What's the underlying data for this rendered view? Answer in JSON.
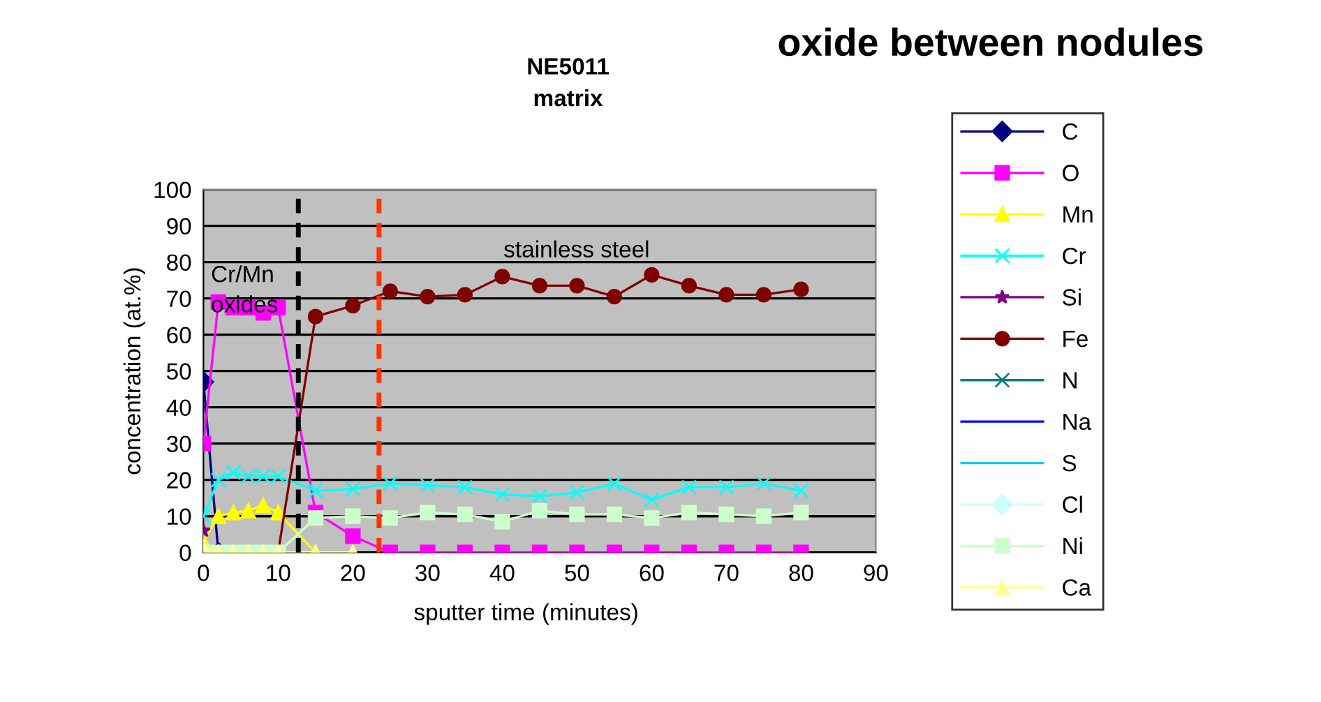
{
  "chart_data": {
    "type": "line",
    "title": "oxide between nodules",
    "subtitle": "NE5011\nmatrix",
    "xlabel": "sputter time (minutes)",
    "ylabel": "concentration (at.%)",
    "x": [
      0,
      2,
      4,
      6,
      8,
      10,
      15,
      20,
      25,
      30,
      35,
      40,
      45,
      50,
      55,
      60,
      65,
      70,
      75,
      80
    ],
    "xlim": [
      0,
      90
    ],
    "xticks": [
      0,
      10,
      20,
      30,
      40,
      50,
      60,
      70,
      80,
      90
    ],
    "ylim": [
      0,
      100
    ],
    "yticks": [
      0,
      10,
      20,
      30,
      40,
      50,
      60,
      70,
      80,
      90,
      100
    ],
    "grid": "y",
    "legend": "right",
    "series": [
      {
        "name": "C",
        "color": "#000080",
        "marker": "diamond",
        "values": [
          47,
          0,
          null,
          null,
          null,
          null,
          null,
          null,
          null,
          null,
          null,
          null,
          null,
          null,
          null,
          null,
          null,
          null,
          null,
          null
        ]
      },
      {
        "name": "O",
        "color": "#ff00ff",
        "marker": "square",
        "values": [
          30,
          69,
          67.5,
          67.5,
          66,
          67.5,
          11,
          4.5,
          0,
          0,
          0,
          0,
          0,
          0,
          0,
          0,
          0,
          0,
          0,
          0
        ]
      },
      {
        "name": "Mn",
        "color": "#ffff00",
        "marker": "triangle",
        "values": [
          3,
          10,
          11,
          11.5,
          13,
          11,
          0,
          null,
          null,
          null,
          null,
          null,
          null,
          null,
          null,
          null,
          null,
          null,
          null,
          null
        ]
      },
      {
        "name": "Cr",
        "color": "#00ffff",
        "marker": "cross",
        "values": [
          10,
          20,
          22,
          21,
          21,
          21,
          17,
          17.5,
          19,
          18.5,
          18,
          16,
          15.5,
          16.5,
          19,
          14.5,
          18,
          18,
          19,
          17
        ]
      },
      {
        "name": "Si",
        "color": "#800080",
        "marker": "star",
        "values": [
          6,
          null,
          null,
          null,
          null,
          null,
          null,
          null,
          null,
          null,
          null,
          null,
          null,
          null,
          null,
          null,
          null,
          null,
          null,
          null
        ]
      },
      {
        "name": "Fe",
        "color": "#800000",
        "marker": "circle",
        "values": [
          null,
          null,
          null,
          null,
          null,
          0,
          65,
          68,
          72,
          70.5,
          71,
          76,
          73.5,
          73.5,
          70.5,
          76.5,
          73.5,
          71,
          71,
          72.5
        ]
      },
      {
        "name": "N",
        "color": "#008080",
        "marker": "cross",
        "values": [
          null,
          null,
          null,
          null,
          null,
          null,
          null,
          null,
          null,
          null,
          null,
          null,
          null,
          null,
          null,
          null,
          null,
          null,
          null,
          null
        ]
      },
      {
        "name": "Na",
        "color": "#0000ff",
        "marker": "none",
        "values": [
          null,
          null,
          null,
          null,
          null,
          null,
          null,
          null,
          null,
          null,
          null,
          null,
          null,
          null,
          null,
          null,
          null,
          null,
          null,
          null
        ]
      },
      {
        "name": "S",
        "color": "#00ccff",
        "marker": "none",
        "values": [
          null,
          null,
          null,
          null,
          null,
          null,
          null,
          null,
          null,
          null,
          null,
          null,
          null,
          null,
          null,
          null,
          null,
          null,
          null,
          null
        ]
      },
      {
        "name": "Cl",
        "color": "#ccffff",
        "marker": "diamond",
        "values": [
          null,
          null,
          null,
          null,
          null,
          null,
          null,
          null,
          null,
          null,
          null,
          null,
          null,
          null,
          null,
          null,
          null,
          null,
          null,
          null
        ]
      },
      {
        "name": "Ni",
        "color": "#ccffcc",
        "marker": "square",
        "values": [
          0,
          0,
          0,
          0,
          0,
          0,
          9.5,
          10,
          9.5,
          11,
          10.5,
          8.5,
          11.5,
          10.5,
          10.5,
          9.5,
          11,
          10.5,
          10,
          11
        ]
      },
      {
        "name": "Ca",
        "color": "#ffff99",
        "marker": "triangle",
        "values": [
          1.5,
          0,
          0,
          0,
          0,
          0,
          0,
          0,
          null,
          null,
          null,
          null,
          null,
          null,
          null,
          null,
          null,
          null,
          null,
          null
        ]
      }
    ],
    "ref_lines": [
      {
        "axis": "x",
        "value": 12.7,
        "color": "#000000",
        "line_style": "dashed"
      },
      {
        "axis": "x",
        "value": 23.5,
        "color": "#ff3300",
        "line_style": "dashed"
      }
    ],
    "annotations": [
      {
        "text": "Cr/Mn\noxides",
        "x": 1,
        "y": 72
      },
      "stainless steel"
    ]
  }
}
